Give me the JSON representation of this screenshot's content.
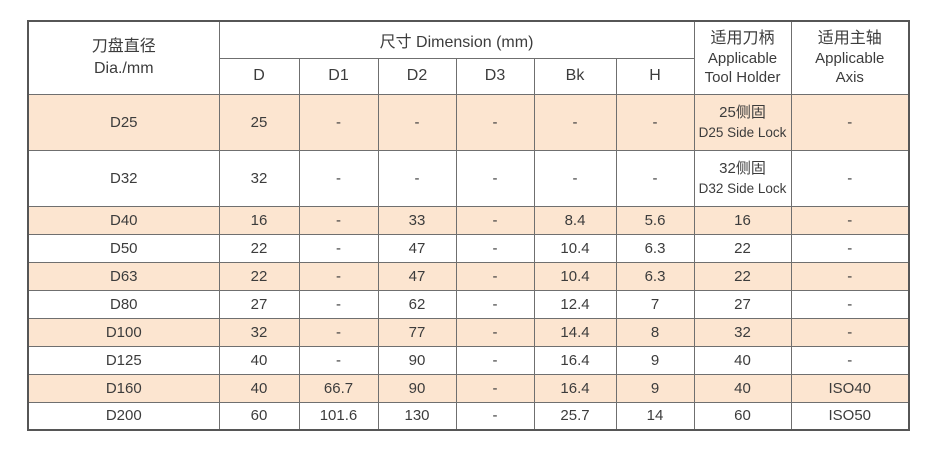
{
  "colors": {
    "row_highlight": "#fce5d0",
    "border": "#6f6f6f",
    "outer_border": "#565656",
    "text": "#3c3c3c",
    "background": "#ffffff"
  },
  "table": {
    "header": {
      "dia_cn": "刀盘直径",
      "dia_en": "Dia./mm",
      "dimension_group": "尺寸 Dimension (mm)",
      "dims": [
        "D",
        "D1",
        "D2",
        "D3",
        "Bk",
        "H"
      ],
      "holder_cn": "适用刀柄",
      "holder_en1": "Applicable",
      "holder_en2": "Tool Holder",
      "axis_cn": "适用主轴",
      "axis_en1": "Applicable",
      "axis_en2": "Axis"
    },
    "rows": [
      {
        "dia": "D25",
        "d": "25",
        "d1": "-",
        "d2": "-",
        "d3": "-",
        "bk": "-",
        "h": "-",
        "holder_cn": "25侧固",
        "holder_en": "D25 Side Lock",
        "axis": "-"
      },
      {
        "dia": "D32",
        "d": "32",
        "d1": "-",
        "d2": "-",
        "d3": "-",
        "bk": "-",
        "h": "-",
        "holder_cn": "32侧固",
        "holder_en": "D32 Side Lock",
        "axis": "-"
      },
      {
        "dia": "D40",
        "d": "16",
        "d1": "-",
        "d2": "33",
        "d3": "-",
        "bk": "8.4",
        "h": "5.6",
        "holder": "16",
        "axis": "-"
      },
      {
        "dia": "D50",
        "d": "22",
        "d1": "-",
        "d2": "47",
        "d3": "-",
        "bk": "10.4",
        "h": "6.3",
        "holder": "22",
        "axis": "-"
      },
      {
        "dia": "D63",
        "d": "22",
        "d1": "-",
        "d2": "47",
        "d3": "-",
        "bk": "10.4",
        "h": "6.3",
        "holder": "22",
        "axis": "-"
      },
      {
        "dia": "D80",
        "d": "27",
        "d1": "-",
        "d2": "62",
        "d3": "-",
        "bk": "12.4",
        "h": "7",
        "holder": "27",
        "axis": "-"
      },
      {
        "dia": "D100",
        "d": "32",
        "d1": "-",
        "d2": "77",
        "d3": "-",
        "bk": "14.4",
        "h": "8",
        "holder": "32",
        "axis": "-"
      },
      {
        "dia": "D125",
        "d": "40",
        "d1": "-",
        "d2": "90",
        "d3": "-",
        "bk": "16.4",
        "h": "9",
        "holder": "40",
        "axis": "-"
      },
      {
        "dia": "D160",
        "d": "40",
        "d1": "66.7",
        "d2": "90",
        "d3": "-",
        "bk": "16.4",
        "h": "9",
        "holder": "40",
        "axis": "ISO40"
      },
      {
        "dia": "D200",
        "d": "60",
        "d1": "101.6",
        "d2": "130",
        "d3": "-",
        "bk": "25.7",
        "h": "14",
        "holder": "60",
        "axis": "ISO50"
      }
    ]
  }
}
